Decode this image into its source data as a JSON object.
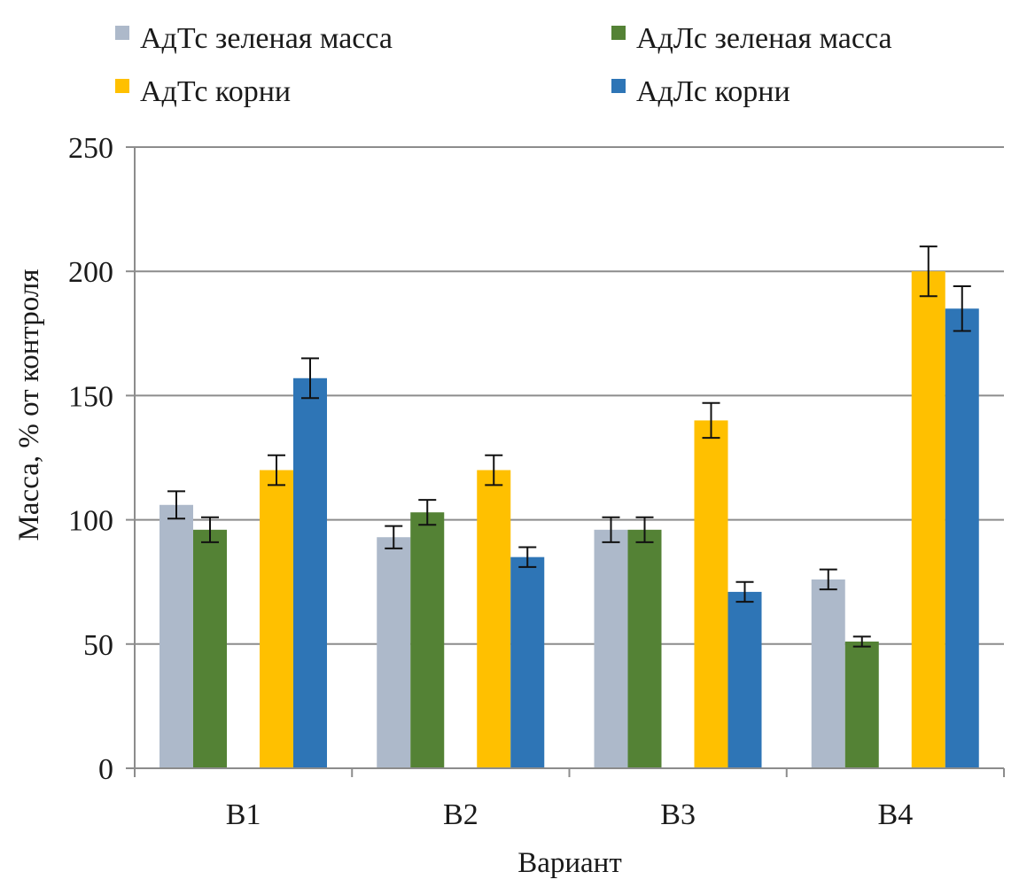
{
  "chart_data": {
    "type": "bar",
    "title": "",
    "xlabel": "Вариант",
    "ylabel": "Масса, % от контроля",
    "ylim": [
      0,
      250
    ],
    "yticks": [
      0,
      50,
      100,
      150,
      200,
      250
    ],
    "grid": true,
    "legend_position": "top",
    "categories": [
      "В1",
      "В2",
      "В3",
      "В4"
    ],
    "series": [
      {
        "name": "АдТс зеленая масса",
        "color": "#adb9ca",
        "values": [
          106,
          93,
          96,
          76
        ],
        "errors": [
          5.5,
          4.5,
          5,
          4
        ]
      },
      {
        "name": "АдЛс зеленая масса",
        "color": "#548235",
        "values": [
          96,
          103,
          96,
          51
        ],
        "errors": [
          5,
          5,
          5,
          2
        ]
      },
      {
        "name": "АдТс корни",
        "color": "#ffc000",
        "values": [
          120,
          120,
          140,
          200
        ],
        "errors": [
          6,
          6,
          7,
          10
        ]
      },
      {
        "name": "АдЛс корни",
        "color": "#2e75b6",
        "values": [
          157,
          85,
          71,
          185
        ],
        "errors": [
          8,
          4,
          4,
          9
        ]
      }
    ]
  }
}
